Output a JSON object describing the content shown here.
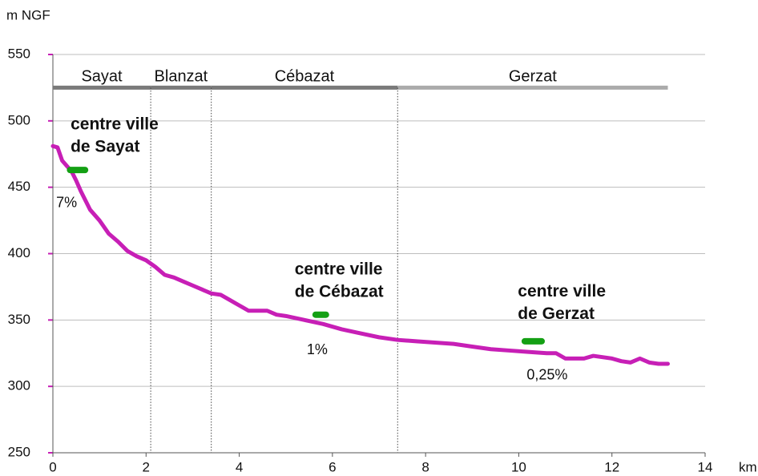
{
  "chart_data": {
    "type": "line",
    "y_label": "m NGF",
    "x_label": "km",
    "xlim": [
      0,
      14
    ],
    "xticks": [
      0,
      2,
      4,
      6,
      8,
      10,
      12,
      14
    ],
    "ylim": [
      250,
      550
    ],
    "yticks": [
      250,
      300,
      350,
      400,
      450,
      500,
      550
    ],
    "grid": true,
    "color": "#c71fb6",
    "x": [
      0,
      0.1,
      0.2,
      0.4,
      0.5,
      0.6,
      0.7,
      0.8,
      1.0,
      1.2,
      1.4,
      1.6,
      1.8,
      2.0,
      2.2,
      2.4,
      2.6,
      2.8,
      3.0,
      3.2,
      3.4,
      3.6,
      3.8,
      4.0,
      4.2,
      4.4,
      4.6,
      4.8,
      5.0,
      5.4,
      5.8,
      6.2,
      6.6,
      7.0,
      7.4,
      7.8,
      8.2,
      8.6,
      9.0,
      9.4,
      9.8,
      10.2,
      10.6,
      10.8,
      11.0,
      11.4,
      11.6,
      12.0,
      12.2,
      12.4,
      12.6,
      12.8,
      13.0,
      13.2
    ],
    "values": [
      481,
      480,
      470,
      462,
      455,
      447,
      440,
      433,
      425,
      415,
      409,
      402,
      398,
      395,
      390,
      384,
      382,
      379,
      376,
      373,
      370,
      369,
      365,
      361,
      357,
      357,
      357,
      354,
      353,
      350,
      347,
      343,
      340,
      337,
      335,
      334,
      333,
      332,
      330,
      328,
      327,
      326,
      325,
      325,
      321,
      321,
      323,
      321,
      319,
      318,
      321,
      318,
      317,
      317
    ],
    "zone_bar_y": 525,
    "zones": [
      {
        "label": "Sayat",
        "start": 0,
        "end": 2.1,
        "color": "#7a7a7a"
      },
      {
        "label": "Blanzat",
        "start": 2.1,
        "end": 3.4,
        "color": "#7a7a7a"
      },
      {
        "label": "Cébazat",
        "start": 3.4,
        "end": 7.4,
        "color": "#7a7a7a"
      },
      {
        "label": "Gerzat",
        "start": 7.4,
        "end": 13.2,
        "color": "#ababab"
      }
    ],
    "marker_color": "#14a014",
    "annotations": [
      {
        "lines": [
          "centre ville",
          "de Sayat"
        ],
        "x": 0.38,
        "y": 497,
        "marker": {
          "x": [
            0.3,
            0.76
          ],
          "y": 463
        }
      },
      {
        "lines": [
          "centre ville",
          "de Cébazat"
        ],
        "x": 5.19,
        "y": 387.6,
        "marker": {
          "x": [
            5.57,
            5.93
          ],
          "y": 354
        }
      },
      {
        "lines": [
          "centre ville",
          "de Gerzat"
        ],
        "x": 9.98,
        "y": 371,
        "marker": {
          "x": [
            10.06,
            10.56
          ],
          "y": 334
        }
      }
    ],
    "slopes": [
      {
        "text": "7%",
        "x": 0.07,
        "y": 438
      },
      {
        "text": "1%",
        "x": 5.45,
        "y": 327
      },
      {
        "text": "0,25%",
        "x": 10.17,
        "y": 308
      }
    ]
  }
}
